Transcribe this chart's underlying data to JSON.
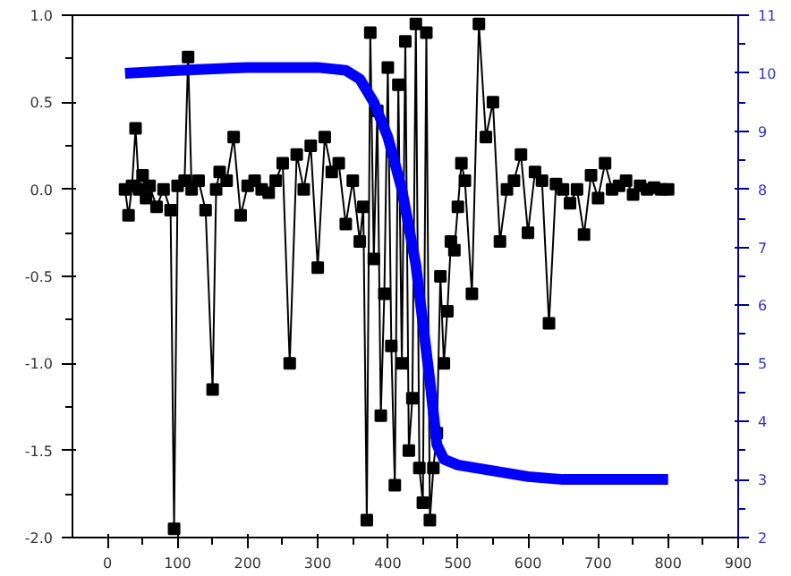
{
  "chart_data": {
    "type": "line",
    "xlim": [
      -50,
      900
    ],
    "xticks": [
      0,
      100,
      200,
      300,
      400,
      500,
      600,
      700,
      800,
      900
    ],
    "ylim": [
      -2.0,
      1.0
    ],
    "yticks": [
      {
        "value": -2.0,
        "label": "-2.0"
      },
      {
        "value": -1.5,
        "label": "-1.5"
      },
      {
        "value": -1.0,
        "label": "-1.0"
      },
      {
        "value": -0.5,
        "label": "-0.5"
      },
      {
        "value": 0.0,
        "label": "0.0"
      },
      {
        "value": 0.5,
        "label": "0.5"
      },
      {
        "value": 1.0,
        "label": "1.0"
      }
    ],
    "y2lim": [
      2,
      11
    ],
    "y2ticks": [
      2,
      3,
      4,
      5,
      6,
      7,
      8,
      9,
      10,
      11
    ],
    "grid": false,
    "series": [
      {
        "color": "#000000",
        "marker": "square",
        "x": [
          25,
          30,
          35,
          40,
          45,
          50,
          55,
          60,
          70,
          80,
          90,
          95,
          100,
          110,
          115,
          120,
          130,
          140,
          150,
          155,
          160,
          170,
          180,
          190,
          200,
          210,
          220,
          230,
          240,
          250,
          260,
          270,
          280,
          290,
          300,
          310,
          320,
          330,
          340,
          350,
          360,
          365,
          370,
          375,
          380,
          385,
          390,
          395,
          400,
          405,
          410,
          415,
          420,
          425,
          430,
          435,
          440,
          445,
          450,
          455,
          460,
          465,
          470,
          475,
          480,
          485,
          490,
          495,
          500,
          505,
          510,
          520,
          530,
          540,
          550,
          560,
          570,
          580,
          590,
          600,
          610,
          620,
          630,
          640,
          650,
          660,
          670,
          680,
          690,
          700,
          710,
          720,
          730,
          740,
          750,
          760,
          770,
          780,
          790,
          800
        ],
        "values": [
          0.0,
          -0.15,
          0.02,
          0.35,
          0.0,
          0.08,
          -0.05,
          0.02,
          -0.1,
          0.0,
          -0.12,
          -1.95,
          0.02,
          0.05,
          0.76,
          0.0,
          0.05,
          -0.12,
          -1.15,
          0.0,
          0.1,
          0.05,
          0.3,
          -0.15,
          0.02,
          0.05,
          0.0,
          -0.02,
          0.05,
          0.15,
          -1.0,
          0.2,
          0.0,
          0.25,
          -0.45,
          0.3,
          0.1,
          0.15,
          -0.2,
          0.05,
          -0.3,
          -0.1,
          -1.9,
          0.9,
          -0.4,
          0.45,
          -1.3,
          -0.6,
          0.7,
          -0.9,
          -1.7,
          0.6,
          -1.0,
          0.85,
          -1.5,
          -1.2,
          0.95,
          -1.6,
          -1.8,
          0.9,
          -1.9,
          -1.6,
          -1.4,
          -0.5,
          -1.0,
          -0.7,
          -0.3,
          -0.35,
          -0.1,
          0.15,
          0.05,
          -0.6,
          0.95,
          0.3,
          0.5,
          -0.3,
          0.0,
          0.05,
          0.2,
          -0.25,
          0.1,
          0.05,
          -0.77,
          0.03,
          0.0,
          -0.08,
          0.0,
          -0.26,
          0.08,
          -0.05,
          0.15,
          0.0,
          0.02,
          0.05,
          -0.03,
          0.02,
          0.0,
          0.01,
          0.0,
          0.0
        ]
      },
      {
        "color": "#0000ff",
        "marker": "none",
        "axis": "y2",
        "x": [
          25,
          100,
          200,
          300,
          340,
          360,
          380,
          400,
          420,
          440,
          450,
          460,
          470,
          480,
          500,
          550,
          600,
          650,
          700,
          800
        ],
        "values": [
          10.0,
          10.05,
          10.1,
          10.1,
          10.05,
          9.9,
          9.5,
          8.9,
          8.0,
          6.7,
          5.7,
          4.7,
          3.6,
          3.35,
          3.25,
          3.15,
          3.05,
          3.0,
          3.0,
          3.0
        ]
      }
    ]
  }
}
